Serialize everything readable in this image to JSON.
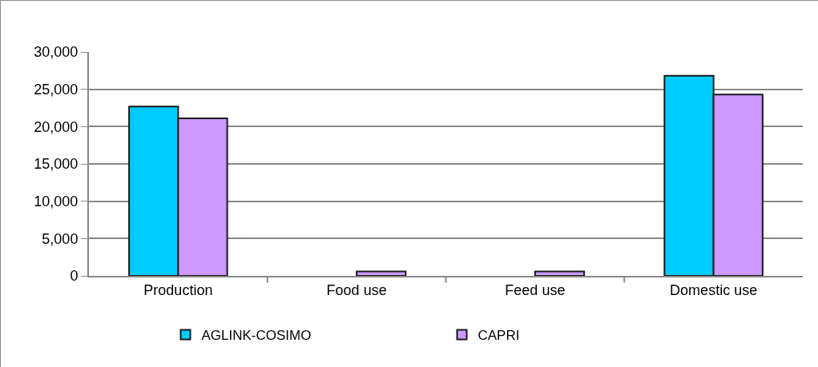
{
  "chart_data": {
    "type": "bar",
    "categories": [
      "Production",
      "Food use",
      "Feed use",
      "Domestic use"
    ],
    "series": [
      {
        "name": "AGLINK-COSIMO",
        "color": "#00ccff",
        "values": [
          22700,
          null,
          null,
          26800
        ]
      },
      {
        "name": "CAPRI",
        "color": "#cc99ff",
        "values": [
          21100,
          600,
          600,
          24300
        ]
      }
    ],
    "ylim": [
      0,
      30000
    ],
    "yticks": [
      {
        "value": 0,
        "label": "0"
      },
      {
        "value": 5000,
        "label": "5,000"
      },
      {
        "value": 10000,
        "label": "10,000"
      },
      {
        "value": 15000,
        "label": "15,000"
      },
      {
        "value": 20000,
        "label": "20,000"
      },
      {
        "value": 25000,
        "label": "25,000"
      },
      {
        "value": 30000,
        "label": "30,000"
      }
    ],
    "grid": "y",
    "legend": "bottom"
  }
}
